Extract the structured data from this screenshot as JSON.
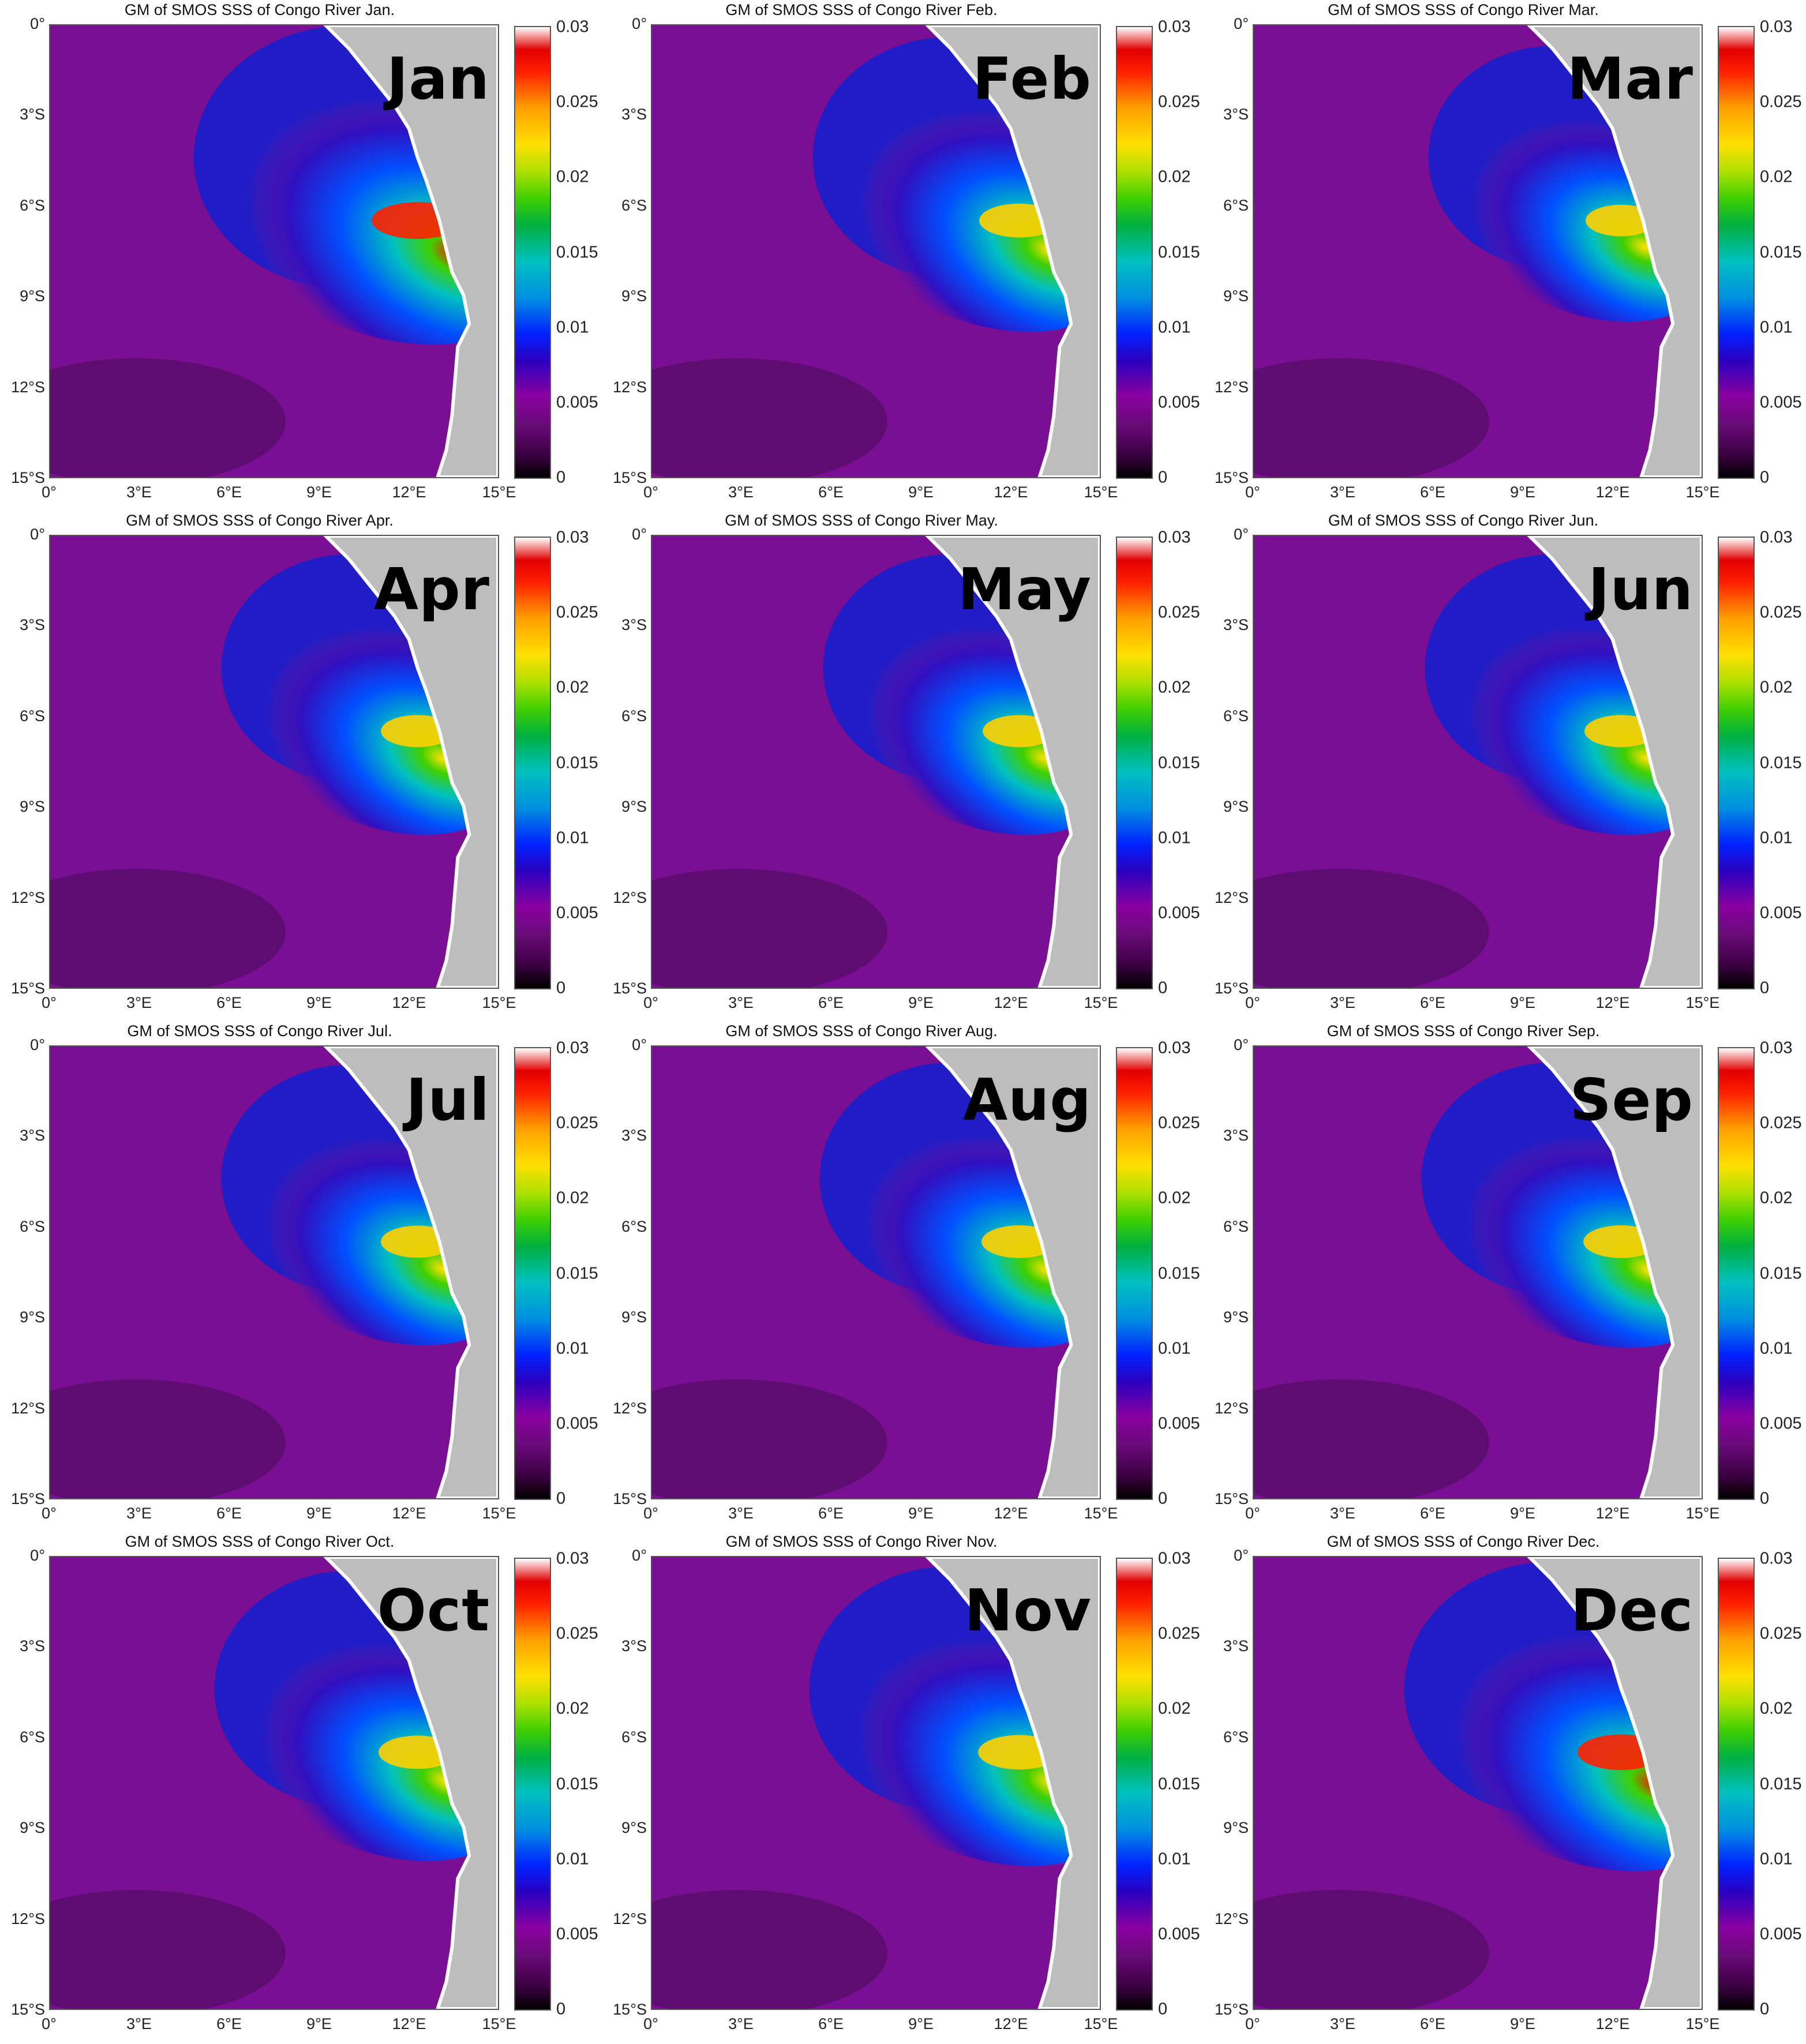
{
  "title_prefix": "GM of SMOS SSS of Congo River",
  "y_ticks": [
    "0°",
    "3°S",
    "6°S",
    "9°S",
    "12°S",
    "15°S"
  ],
  "x_ticks": [
    "0°",
    "3°E",
    "6°E",
    "9°E",
    "12°E",
    "15°E"
  ],
  "colorbar_ticks": [
    "0.03",
    "0.025",
    "0.02",
    "0.015",
    "0.01",
    "0.005",
    "0"
  ],
  "panels": [
    {
      "title": "GM of SMOS SSS of Congo River Jan.",
      "month": "Jan",
      "plume_intensity": 1.0
    },
    {
      "title": "GM of SMOS SSS of Congo River Feb.",
      "month": "Feb",
      "plume_intensity": 0.75
    },
    {
      "title": "GM of SMOS SSS of Congo River Mar.",
      "month": "Mar",
      "plume_intensity": 0.55
    },
    {
      "title": "GM of SMOS SSS of Congo River Apr.",
      "month": "Apr",
      "plume_intensity": 0.6
    },
    {
      "title": "GM of SMOS SSS of Congo River May.",
      "month": "May",
      "plume_intensity": 0.6
    },
    {
      "title": "GM of SMOS SSS of Congo River Jun.",
      "month": "Jun",
      "plume_intensity": 0.6
    },
    {
      "title": "GM of SMOS SSS of Congo River Jul.",
      "month": "Jul",
      "plume_intensity": 0.6
    },
    {
      "title": "GM of SMOS SSS of Congo River Aug.",
      "month": "Aug",
      "plume_intensity": 0.65
    },
    {
      "title": "GM of SMOS SSS of Congo River Sep.",
      "month": "Sep",
      "plume_intensity": 0.65
    },
    {
      "title": "GM of SMOS SSS of Congo River Oct.",
      "month": "Oct",
      "plume_intensity": 0.7
    },
    {
      "title": "GM of SMOS SSS of Congo River Nov.",
      "month": "Nov",
      "plume_intensity": 0.8
    },
    {
      "title": "GM of SMOS SSS of Congo River Dec.",
      "month": "Dec",
      "plume_intensity": 0.9
    }
  ],
  "colors": {
    "ocean": "#7a0f94",
    "land": "#bdbdbd",
    "coast": "#ffffff"
  }
}
